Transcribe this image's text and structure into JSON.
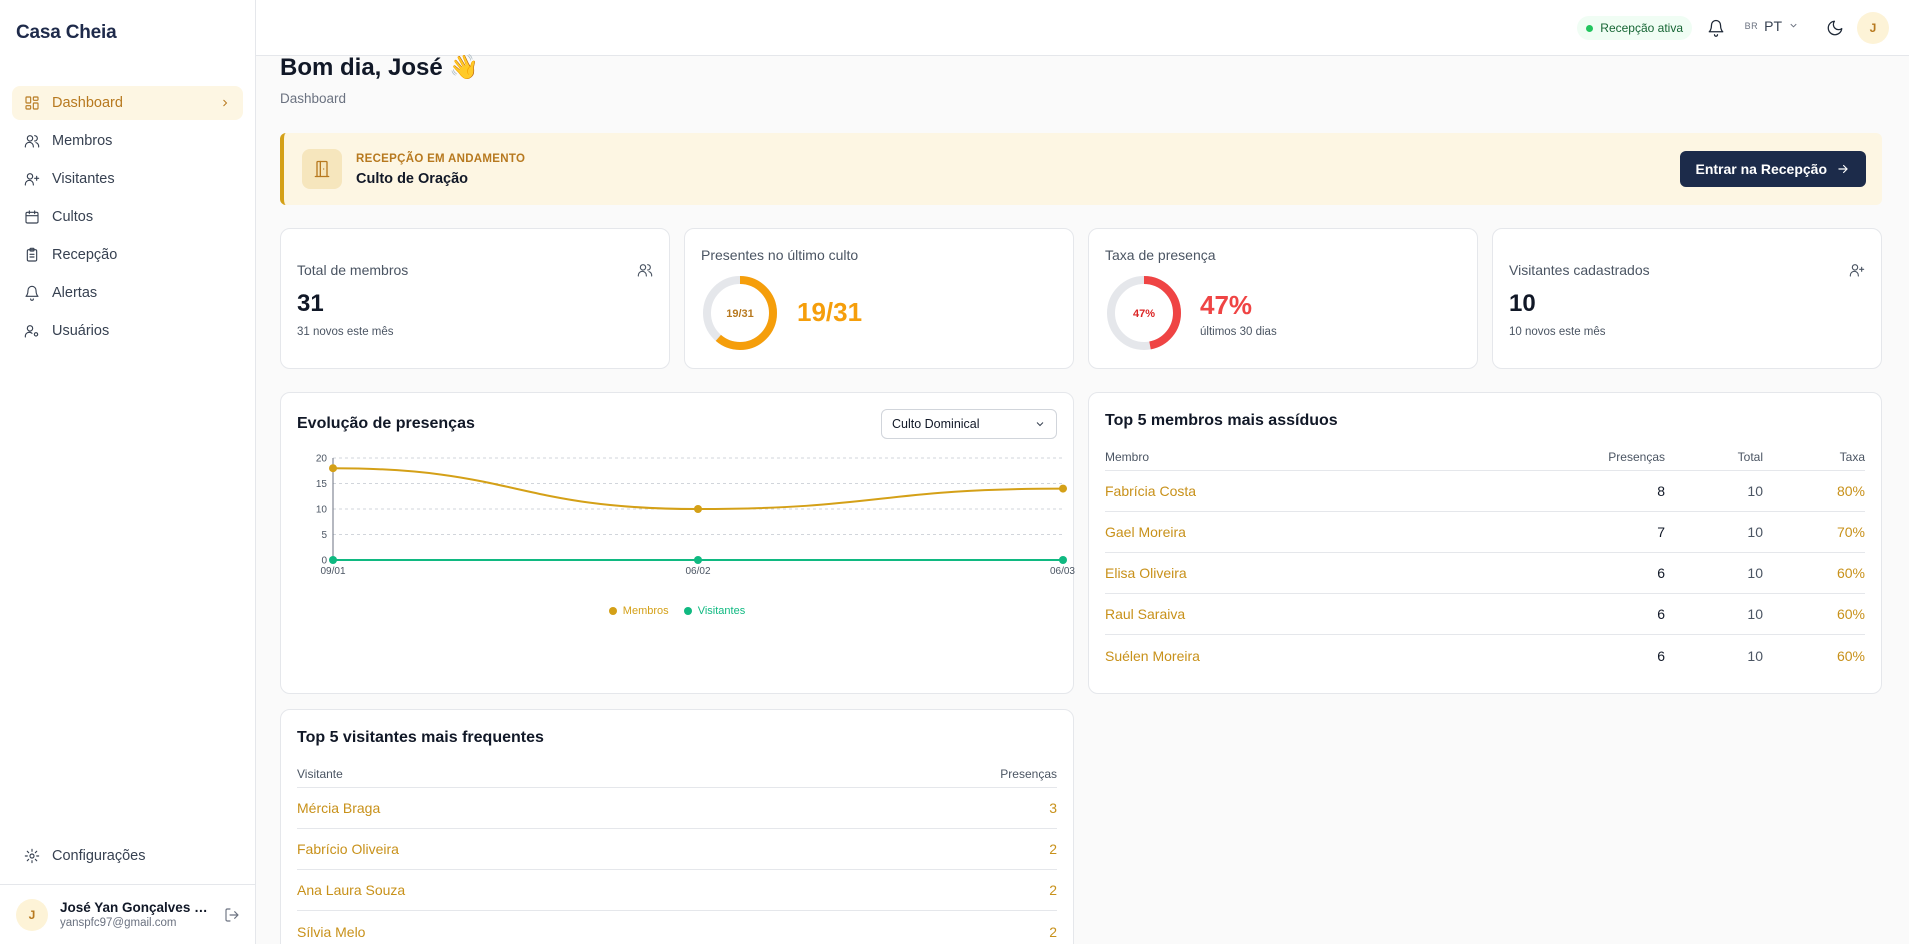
{
  "app": {
    "brand": "Casa Cheia"
  },
  "sidebar": {
    "items": [
      {
        "label": "Dashboard",
        "icon": "dashboard-icon",
        "active": true
      },
      {
        "label": "Membros",
        "icon": "users-icon"
      },
      {
        "label": "Visitantes",
        "icon": "user-plus-icon"
      },
      {
        "label": "Cultos",
        "icon": "calendar-icon"
      },
      {
        "label": "Recepção",
        "icon": "clipboard-icon"
      },
      {
        "label": "Alertas",
        "icon": "bell-icon"
      },
      {
        "label": "Usuários",
        "icon": "user-cog-icon"
      }
    ],
    "settings_label": "Configurações",
    "user": {
      "initial": "J",
      "name": "José Yan Gonçalves L...",
      "email": "yanspfc97@gmail.com"
    }
  },
  "topbar": {
    "status": "Recepção ativa",
    "lang_flag": "BR",
    "lang": "PT",
    "avatar_initial": "J"
  },
  "header": {
    "greeting": "Bom dia, José 👋",
    "breadcrumb": "Dashboard"
  },
  "banner": {
    "label": "RECEPÇÃO EM ANDAMENTO",
    "title": "Culto de Oração",
    "button": "Entrar na Recepção"
  },
  "stats": {
    "members": {
      "label": "Total de membros",
      "value": "31",
      "sub": "31 novos este mês"
    },
    "present": {
      "label": "Presentes no último culto",
      "donut_text": "19/31",
      "value": "19/31",
      "fraction": 0.6129
    },
    "rate": {
      "label": "Taxa de presença",
      "donut_text": "47%",
      "value": "47%",
      "sub": "últimos 30 dias",
      "fraction": 0.47
    },
    "visitors": {
      "label": "Visitantes cadastrados",
      "value": "10",
      "sub": "10 novos este mês"
    }
  },
  "colors": {
    "accent": "#c8911a",
    "members": "#d4a017",
    "visitors": "#10b981",
    "rate": "#ef4444",
    "track": "#e5e7eb"
  },
  "evolution": {
    "title": "Evolução de presenças",
    "select_value": "Culto Dominical"
  },
  "chart_data": {
    "type": "line",
    "x": [
      "09/01",
      "06/02",
      "06/03"
    ],
    "series": [
      {
        "name": "Membros",
        "values": [
          18,
          10,
          14
        ]
      },
      {
        "name": "Visitantes",
        "values": [
          0,
          0,
          0
        ]
      }
    ],
    "yticks": [
      0,
      5,
      10,
      15,
      20
    ],
    "ylim": [
      0,
      20
    ],
    "grid": true,
    "legend": "bottom"
  },
  "top_members": {
    "title": "Top 5 membros mais assíduos",
    "headers": {
      "name": "Membro",
      "presences": "Presenças",
      "total": "Total",
      "rate": "Taxa"
    },
    "rows": [
      {
        "name": "Fabrícia Costa",
        "presences": "8",
        "total": "10",
        "rate": "80%"
      },
      {
        "name": "Gael Moreira",
        "presences": "7",
        "total": "10",
        "rate": "70%"
      },
      {
        "name": "Elisa Oliveira",
        "presences": "6",
        "total": "10",
        "rate": "60%"
      },
      {
        "name": "Raul Saraiva",
        "presences": "6",
        "total": "10",
        "rate": "60%"
      },
      {
        "name": "Suélen Moreira",
        "presences": "6",
        "total": "10",
        "rate": "60%"
      }
    ]
  },
  "top_visitors": {
    "title": "Top 5 visitantes mais frequentes",
    "headers": {
      "name": "Visitante",
      "presences": "Presenças"
    },
    "rows": [
      {
        "name": "Mércia Braga",
        "presences": "3"
      },
      {
        "name": "Fabrício Oliveira",
        "presences": "2"
      },
      {
        "name": "Ana Laura Souza",
        "presences": "2"
      },
      {
        "name": "Sílvia Melo",
        "presences": "2"
      }
    ]
  }
}
